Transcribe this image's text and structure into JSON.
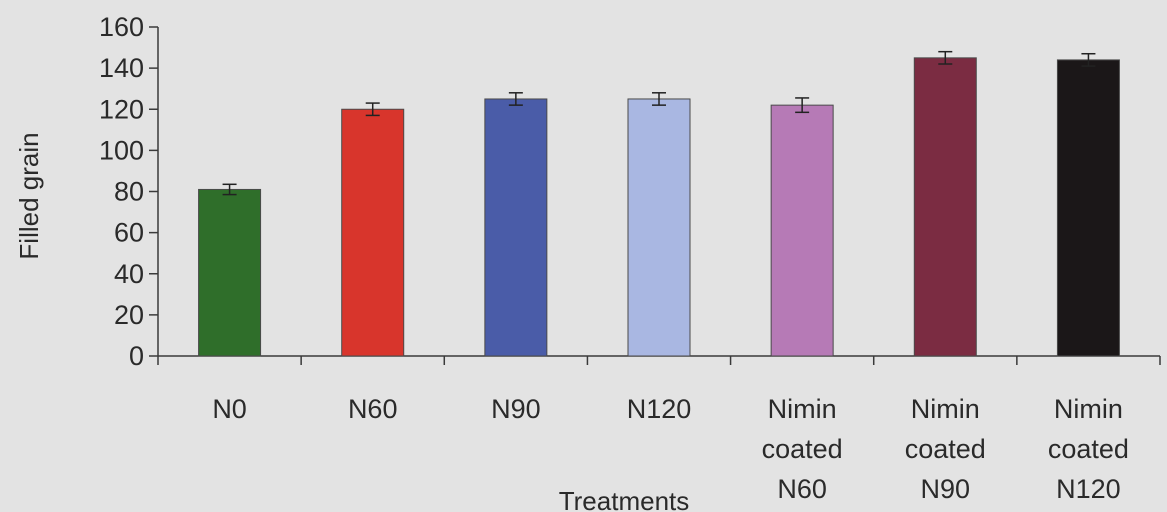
{
  "chart_data": {
    "type": "bar",
    "xlabel": "Treatments",
    "ylabel": "Filled grain",
    "ylim": [
      0,
      160
    ],
    "yticks": [
      0,
      20,
      40,
      60,
      80,
      100,
      120,
      140,
      160
    ],
    "grid": false,
    "error_bars": true,
    "categories": [
      [
        "N0"
      ],
      [
        "N60"
      ],
      [
        "N90"
      ],
      [
        "N120"
      ],
      [
        "Nimin",
        "coated",
        "N60"
      ],
      [
        "Nimin",
        "coated",
        "N90"
      ],
      [
        "Nimin",
        "coated",
        "N120"
      ]
    ],
    "values": [
      81,
      120,
      125,
      125,
      122,
      145,
      144
    ],
    "errors": [
      2.5,
      3,
      3,
      3,
      3.5,
      3,
      3
    ],
    "colors": [
      "#2f6e2a",
      "#d8352c",
      "#4a5ca8",
      "#a9b7e2",
      "#b67ab6",
      "#7b2c42",
      "#1b1718"
    ]
  }
}
